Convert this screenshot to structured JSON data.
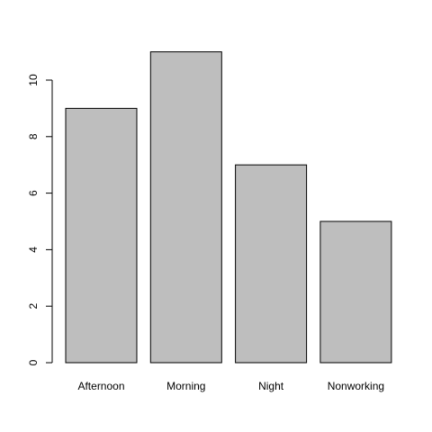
{
  "chart_data": {
    "type": "bar",
    "categories": [
      "Afternoon",
      "Morning",
      "Night",
      "Nonworking"
    ],
    "values": [
      9,
      11,
      7,
      5
    ],
    "title": "",
    "xlabel": "",
    "ylabel": "",
    "ylim": [
      0,
      11
    ],
    "yticks": [
      0,
      2,
      4,
      6,
      8,
      10
    ],
    "grid": false,
    "colors": {
      "bar_fill": "#bebebe",
      "bar_stroke": "#000000",
      "axis": "#000000",
      "background": "#ffffff"
    }
  }
}
